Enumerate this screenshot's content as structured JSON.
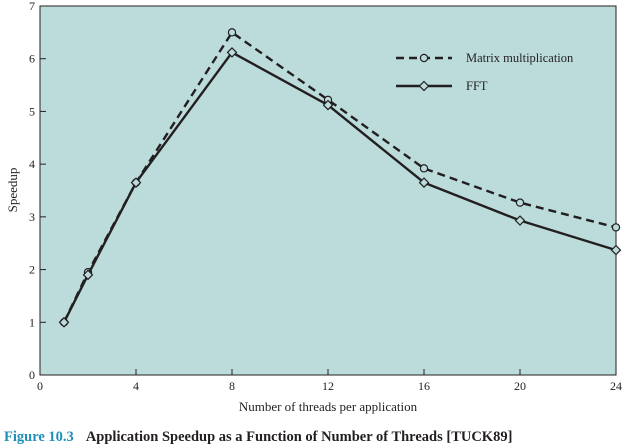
{
  "chart_data": {
    "type": "line",
    "xlabel": "Number of threads per application",
    "ylabel": "Speedup",
    "xlim": [
      0,
      24
    ],
    "ylim": [
      0,
      7
    ],
    "xticks": [
      0,
      4,
      8,
      12,
      16,
      20,
      24
    ],
    "yticks": [
      0,
      1,
      2,
      3,
      4,
      5,
      6,
      7
    ],
    "grid": false,
    "background": "#bcdcdb",
    "legend_position": "top-right",
    "series": [
      {
        "name": "Matrix multiplication",
        "style": "dashed",
        "marker": "circle",
        "x": [
          1,
          2,
          4,
          8,
          12,
          16,
          20,
          24
        ],
        "y": [
          1.0,
          1.95,
          3.65,
          6.5,
          5.22,
          3.92,
          3.27,
          2.8
        ]
      },
      {
        "name": "FFT",
        "style": "solid",
        "marker": "diamond",
        "x": [
          1,
          2,
          4,
          8,
          12,
          16,
          20,
          24
        ],
        "y": [
          1.0,
          1.9,
          3.65,
          6.12,
          5.12,
          3.65,
          2.93,
          2.37
        ]
      }
    ]
  },
  "caption": {
    "number": "Figure 10.3",
    "text": "Application Speedup as a Function of Number of Threads [TUCK89]"
  },
  "colors": {
    "plot_background": "#bcdcdb",
    "line": "#231f20",
    "caption_number": "#1f8fb8"
  }
}
